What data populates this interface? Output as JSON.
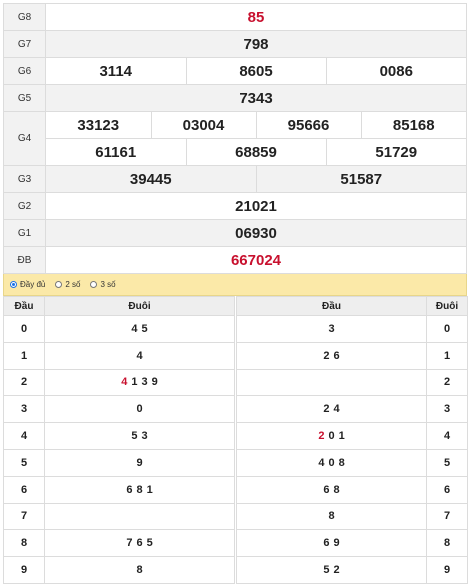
{
  "results": [
    {
      "label": "G8",
      "numbers": [
        "85"
      ],
      "red": true
    },
    {
      "label": "G7",
      "numbers": [
        "798"
      ]
    },
    {
      "label": "G6",
      "numbers": [
        "3114",
        "8605",
        "0086"
      ]
    },
    {
      "label": "G5",
      "numbers": [
        "7343"
      ]
    },
    {
      "label": "G4",
      "numbers": [
        "33123",
        "03004",
        "95666",
        "85168",
        "61161",
        "68859",
        "51729"
      ]
    },
    {
      "label": "G3",
      "numbers": [
        "39445",
        "51587"
      ]
    },
    {
      "label": "G2",
      "numbers": [
        "21021"
      ]
    },
    {
      "label": "G1",
      "numbers": [
        "06930"
      ]
    },
    {
      "label": "ĐB",
      "numbers": [
        "667024"
      ],
      "red": true
    }
  ],
  "options": [
    {
      "label": "Đầy đủ",
      "selected": true
    },
    {
      "label": "2 số",
      "selected": false
    },
    {
      "label": "3 số",
      "selected": false
    }
  ],
  "loto": {
    "headers": {
      "dau": "Đầu",
      "duoi": "Đuôi",
      "dau2": "Đầu",
      "duoi2": "Đuôi"
    },
    "rows": [
      {
        "head": "0",
        "tails": [
          "4",
          "5"
        ],
        "tails_red": [],
        "heads": [
          "3"
        ],
        "heads_red": [],
        "tail": "0"
      },
      {
        "head": "1",
        "tails": [
          "4"
        ],
        "tails_red": [],
        "heads": [
          "2",
          "6"
        ],
        "heads_red": [],
        "tail": "1"
      },
      {
        "head": "2",
        "tails": [
          "4",
          "1",
          "3",
          "9"
        ],
        "tails_red": [
          0
        ],
        "heads": [],
        "heads_red": [],
        "tail": "2"
      },
      {
        "head": "3",
        "tails": [
          "0"
        ],
        "tails_red": [],
        "heads": [
          "2",
          "4"
        ],
        "heads_red": [],
        "tail": "3"
      },
      {
        "head": "4",
        "tails": [
          "5",
          "3"
        ],
        "tails_red": [],
        "heads": [
          "2",
          "0",
          "1"
        ],
        "heads_red": [
          0
        ],
        "tail": "4"
      },
      {
        "head": "5",
        "tails": [
          "9"
        ],
        "tails_red": [],
        "heads": [
          "4",
          "0",
          "8"
        ],
        "heads_red": [],
        "tail": "5"
      },
      {
        "head": "6",
        "tails": [
          "6",
          "8",
          "1"
        ],
        "tails_red": [],
        "heads": [
          "6",
          "8"
        ],
        "heads_red": [],
        "tail": "6"
      },
      {
        "head": "7",
        "tails": [],
        "tails_red": [],
        "heads": [
          "8"
        ],
        "heads_red": [],
        "tail": "7"
      },
      {
        "head": "8",
        "tails": [
          "7",
          "6",
          "5"
        ],
        "tails_red": [],
        "heads": [
          "6",
          "9"
        ],
        "heads_red": [],
        "tail": "8"
      },
      {
        "head": "9",
        "tails": [
          "8"
        ],
        "tails_red": [],
        "heads": [
          "5",
          "2"
        ],
        "heads_red": [],
        "tail": "9"
      }
    ]
  },
  "colors": {
    "red": "#c8102e",
    "option_bar": "#fbe9a8",
    "radio_selected": "#1a73e8"
  }
}
